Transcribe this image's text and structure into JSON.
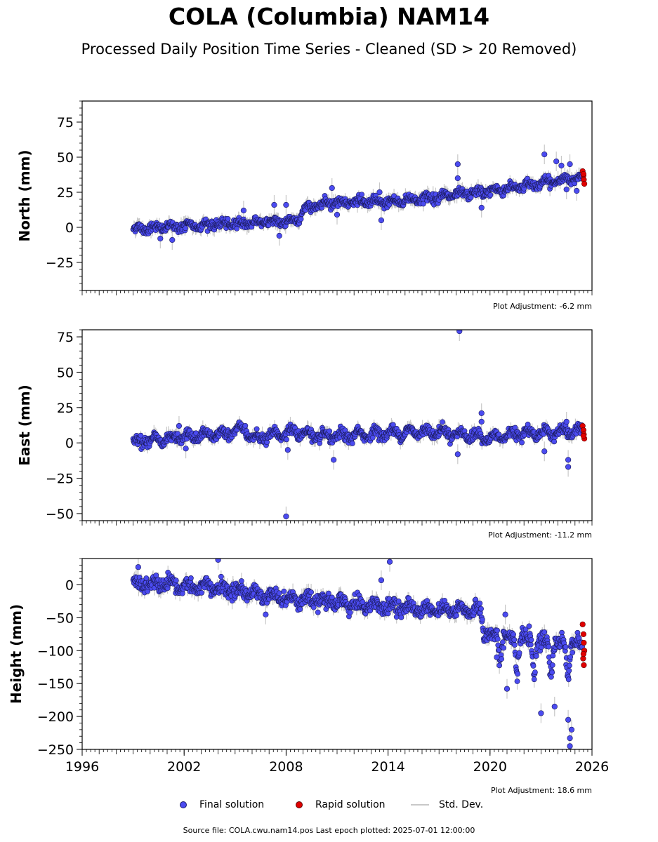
{
  "title": "COLA (Columbia) NAM14",
  "subtitle": "Processed Daily Position Time Series - Cleaned (SD > 20 Removed)",
  "footer": "Source file: COLA.cwu.nam14.pos  Last epoch plotted: 2025-07-01 12:00:00",
  "legend": {
    "final": "Final solution",
    "rapid": "Rapid solution",
    "std": "Std. Dev."
  },
  "colors": {
    "final": "#4b4bf0",
    "final_edge": "#1a1a5a",
    "rapid": "#e00000",
    "std": "#c8c8c8"
  },
  "chart_data": [
    {
      "type": "scatter",
      "ylabel": "North (mm)",
      "adjustment": "Plot Adjustment: -6.2 mm",
      "xlim": [
        1996,
        2026
      ],
      "ylim": [
        -45,
        90
      ],
      "yticks": [
        -25,
        0,
        25,
        50,
        75
      ],
      "ytick_labels": [
        "−25",
        "0",
        "25",
        "50",
        "75"
      ],
      "trend": [
        [
          1999.0,
          -1
        ],
        [
          2008.8,
          5
        ],
        [
          2009.0,
          13
        ],
        [
          2010.5,
          18
        ],
        [
          2014.0,
          18
        ],
        [
          2019.5,
          25
        ],
        [
          2025.5,
          36
        ]
      ],
      "noise": 2.6,
      "outliers": [
        [
          2000.6,
          -8
        ],
        [
          2001.3,
          -9
        ],
        [
          2005.5,
          12
        ],
        [
          2007.3,
          16
        ],
        [
          2007.6,
          -6
        ],
        [
          2008.0,
          16
        ],
        [
          2010.7,
          28
        ],
        [
          2011.0,
          9
        ],
        [
          2013.6,
          5
        ],
        [
          2013.5,
          25
        ],
        [
          2018.1,
          45
        ],
        [
          2018.1,
          35
        ],
        [
          2019.5,
          14
        ],
        [
          2023.2,
          52
        ],
        [
          2023.9,
          47
        ],
        [
          2024.7,
          45
        ],
        [
          2024.5,
          27
        ],
        [
          2025.1,
          26
        ],
        [
          2024.2,
          44
        ]
      ],
      "rapid": [
        [
          2025.45,
          40
        ],
        [
          2025.5,
          37
        ],
        [
          2025.52,
          34
        ],
        [
          2025.55,
          31
        ],
        [
          2025.5,
          38
        ]
      ]
    },
    {
      "type": "scatter",
      "ylabel": "East (mm)",
      "adjustment": "Plot Adjustment: -11.2 mm",
      "xlim": [
        1996,
        2026
      ],
      "ylim": [
        -55,
        80
      ],
      "yticks": [
        -50,
        -25,
        0,
        25,
        50,
        75
      ],
      "ytick_labels": [
        "−50",
        "−25",
        "0",
        "25",
        "50",
        "75"
      ],
      "trend": [
        [
          1999.0,
          1
        ],
        [
          2004.0,
          6
        ],
        [
          2005.5,
          10
        ],
        [
          2006.0,
          3
        ],
        [
          2008.5,
          8
        ],
        [
          2010.0,
          4
        ],
        [
          2014.0,
          7
        ],
        [
          2017.0,
          8
        ],
        [
          2020.0,
          3
        ],
        [
          2022.0,
          7
        ],
        [
          2025.5,
          8
        ]
      ],
      "noise": 2.8,
      "outliers": [
        [
          2008.0,
          -52
        ],
        [
          2018.2,
          79
        ],
        [
          2019.5,
          21
        ],
        [
          2019.5,
          15
        ],
        [
          2018.1,
          -8
        ],
        [
          2010.8,
          -12
        ],
        [
          2008.1,
          -5
        ],
        [
          2001.7,
          12
        ],
        [
          2002.1,
          -4
        ],
        [
          2024.6,
          -17
        ],
        [
          2024.6,
          -12
        ],
        [
          2023.2,
          -6
        ],
        [
          2024.5,
          15
        ]
      ],
      "rapid": [
        [
          2025.45,
          12
        ],
        [
          2025.5,
          9
        ],
        [
          2025.52,
          6
        ],
        [
          2025.55,
          3
        ],
        [
          2025.5,
          5
        ]
      ]
    },
    {
      "type": "scatter",
      "ylabel": "Height (mm)",
      "adjustment": "Plot Adjustment: 18.6 mm",
      "xlim": [
        1996,
        2026
      ],
      "ylim": [
        -250,
        40
      ],
      "yticks": [
        -250,
        -200,
        -150,
        -100,
        -50,
        0
      ],
      "ytick_labels": [
        "−250",
        "−200",
        "−150",
        "−100",
        "−50",
        "0"
      ],
      "xticks": [
        1996,
        2002,
        2008,
        2014,
        2020,
        2026
      ],
      "xtick_labels": [
        "1996",
        "2002",
        "2008",
        "2014",
        "2020",
        "2026"
      ],
      "trend": [
        [
          1999.0,
          2
        ],
        [
          2004.0,
          -5
        ],
        [
          2008.0,
          -20
        ],
        [
          2012.0,
          -30
        ],
        [
          2019.5,
          -40
        ],
        [
          2019.6,
          -75
        ],
        [
          2025.5,
          -90
        ]
      ],
      "noise": 9,
      "outliers": [
        [
          2004.0,
          38
        ],
        [
          2014.1,
          35
        ],
        [
          2013.6,
          7
        ],
        [
          1999.3,
          27
        ],
        [
          2024.7,
          -245
        ],
        [
          2024.7,
          -233
        ],
        [
          2024.8,
          -220
        ],
        [
          2024.6,
          -205
        ],
        [
          2021.0,
          -158
        ],
        [
          2023.0,
          -195
        ],
        [
          2023.8,
          -185
        ],
        [
          2020.4,
          -110
        ],
        [
          2020.9,
          -45
        ],
        [
          2006.8,
          -45
        ]
      ],
      "rapid": [
        [
          2025.45,
          -60
        ],
        [
          2025.5,
          -75
        ],
        [
          2025.52,
          -88
        ],
        [
          2025.55,
          -100
        ],
        [
          2025.48,
          -112
        ],
        [
          2025.52,
          -122
        ],
        [
          2025.5,
          -105
        ]
      ]
    }
  ]
}
